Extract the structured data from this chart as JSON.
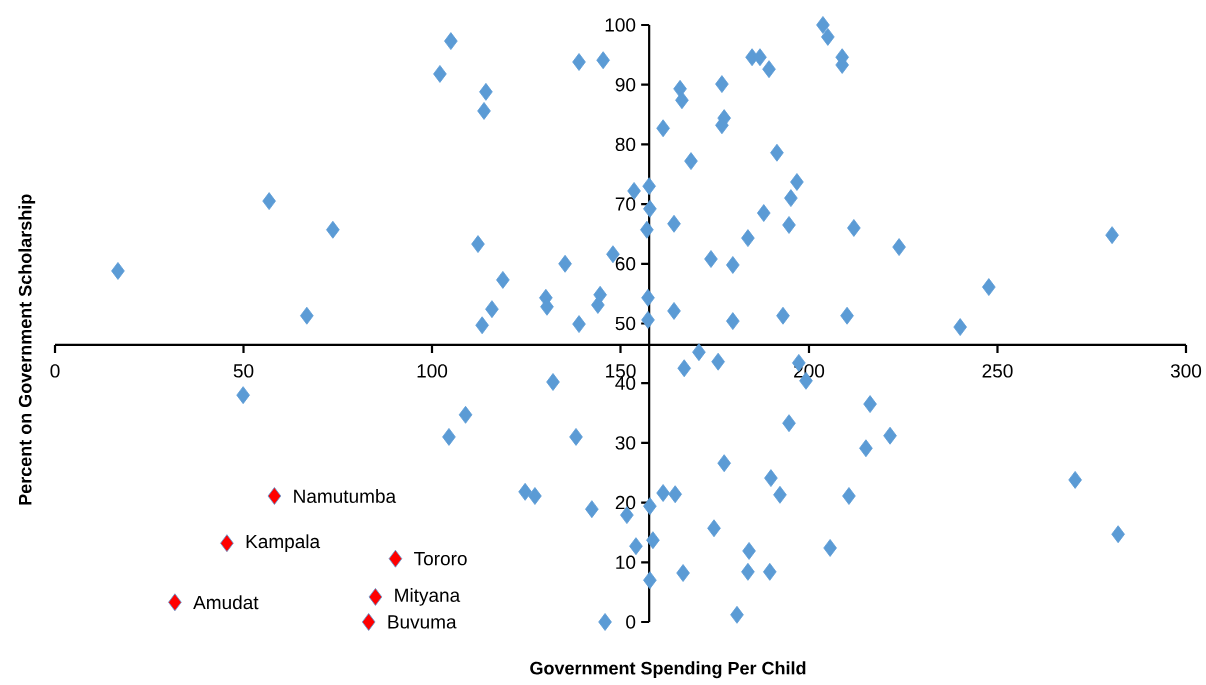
{
  "chart_data": {
    "type": "scatter",
    "xlabel": "Government Spending Per Child",
    "ylabel": "Percent on Government Scholarship",
    "xlim": [
      0,
      300
    ],
    "ylim": [
      0,
      100
    ],
    "xticks": [
      0,
      50,
      100,
      150,
      200,
      250,
      300
    ],
    "yticks": [
      0,
      10,
      20,
      30,
      40,
      50,
      60,
      70,
      80,
      90,
      100
    ],
    "marker": "diamond",
    "series": [
      {
        "color": "#5b9bd5",
        "x": [
          16.7,
          56.8,
          73.7,
          66.8,
          102.1,
          105.0,
          114.3,
          113.8,
          112.2,
          113.3,
          115.9,
          118.8,
          130.2,
          130.5,
          135.3,
          139.0,
          139.0,
          145.4,
          144.6,
          144.0,
          148.0,
          153.6,
          157.6,
          157.8,
          157.0,
          157.3,
          157.3,
          161.3,
          165.8,
          166.3,
          164.2,
          164.2,
          168.7,
          176.9,
          177.5,
          176.9,
          174.0,
          179.8,
          179.8,
          184.9,
          187.0,
          189.4,
          183.8,
          188.0,
          191.5,
          195.2,
          196.8,
          194.7,
          193.1,
          203.7,
          205.0,
          208.8,
          208.8,
          211.9,
          210.1,
          223.9,
          240.1,
          247.7,
          280.4,
          49.9,
          104.5,
          108.9,
          132.1,
          124.7,
          127.3,
          138.2,
          142.4,
          145.9,
          151.7,
          154.1,
          157.8,
          158.6,
          157.8,
          161.3,
          164.5,
          166.9,
          170.8,
          166.6,
          174.8,
          175.9,
          177.5,
          180.9,
          184.1,
          183.8,
          189.9,
          189.6,
          192.3,
          194.7,
          197.3,
          199.2,
          205.6,
          210.6,
          216.2,
          215.1,
          221.5,
          270.6,
          282.0
        ],
        "values": [
          58.8,
          70.5,
          65.7,
          51.3,
          91.8,
          97.3,
          88.8,
          85.6,
          63.3,
          49.7,
          52.4,
          57.3,
          54.3,
          52.8,
          60.0,
          93.8,
          49.9,
          94.1,
          54.8,
          53.1,
          61.6,
          72.2,
          73.0,
          69.2,
          65.7,
          54.3,
          50.6,
          82.7,
          89.3,
          87.4,
          66.7,
          52.1,
          77.2,
          90.1,
          84.4,
          83.2,
          60.8,
          59.8,
          50.4,
          94.6,
          94.6,
          92.6,
          64.3,
          68.5,
          78.6,
          71.0,
          73.7,
          66.5,
          51.3,
          100.0,
          98.0,
          94.6,
          93.3,
          66.0,
          51.3,
          62.8,
          49.4,
          56.1,
          64.8,
          38.0,
          31.0,
          34.7,
          40.2,
          21.8,
          21.1,
          31.0,
          18.9,
          0.0,
          17.9,
          12.7,
          19.4,
          13.7,
          7.0,
          21.6,
          21.4,
          42.5,
          45.2,
          8.2,
          15.7,
          43.6,
          26.6,
          1.2,
          11.9,
          8.4,
          24.1,
          8.4,
          21.3,
          33.3,
          43.4,
          40.4,
          12.4,
          21.1,
          36.5,
          29.1,
          31.2,
          23.8,
          14.7
        ]
      },
      {
        "color": "#ff0000",
        "x": [
          58.2,
          45.6,
          90.3,
          31.8,
          85.0,
          83.2
        ],
        "values": [
          21.1,
          13.2,
          10.6,
          3.3,
          4.2,
          0.0
        ]
      }
    ],
    "annotations": [
      {
        "text": "Namutumba",
        "x": 58.2,
        "y": 21.1
      },
      {
        "text": "Kampala",
        "x": 45.6,
        "y": 13.2
      },
      {
        "text": "Tororo",
        "x": 90.3,
        "y": 10.6
      },
      {
        "text": "Amudat",
        "x": 31.8,
        "y": 3.3
      },
      {
        "text": "Mityana",
        "x": 85.0,
        "y": 4.2
      },
      {
        "text": "Buvuma",
        "x": 83.2,
        "y": 0.0
      }
    ]
  }
}
